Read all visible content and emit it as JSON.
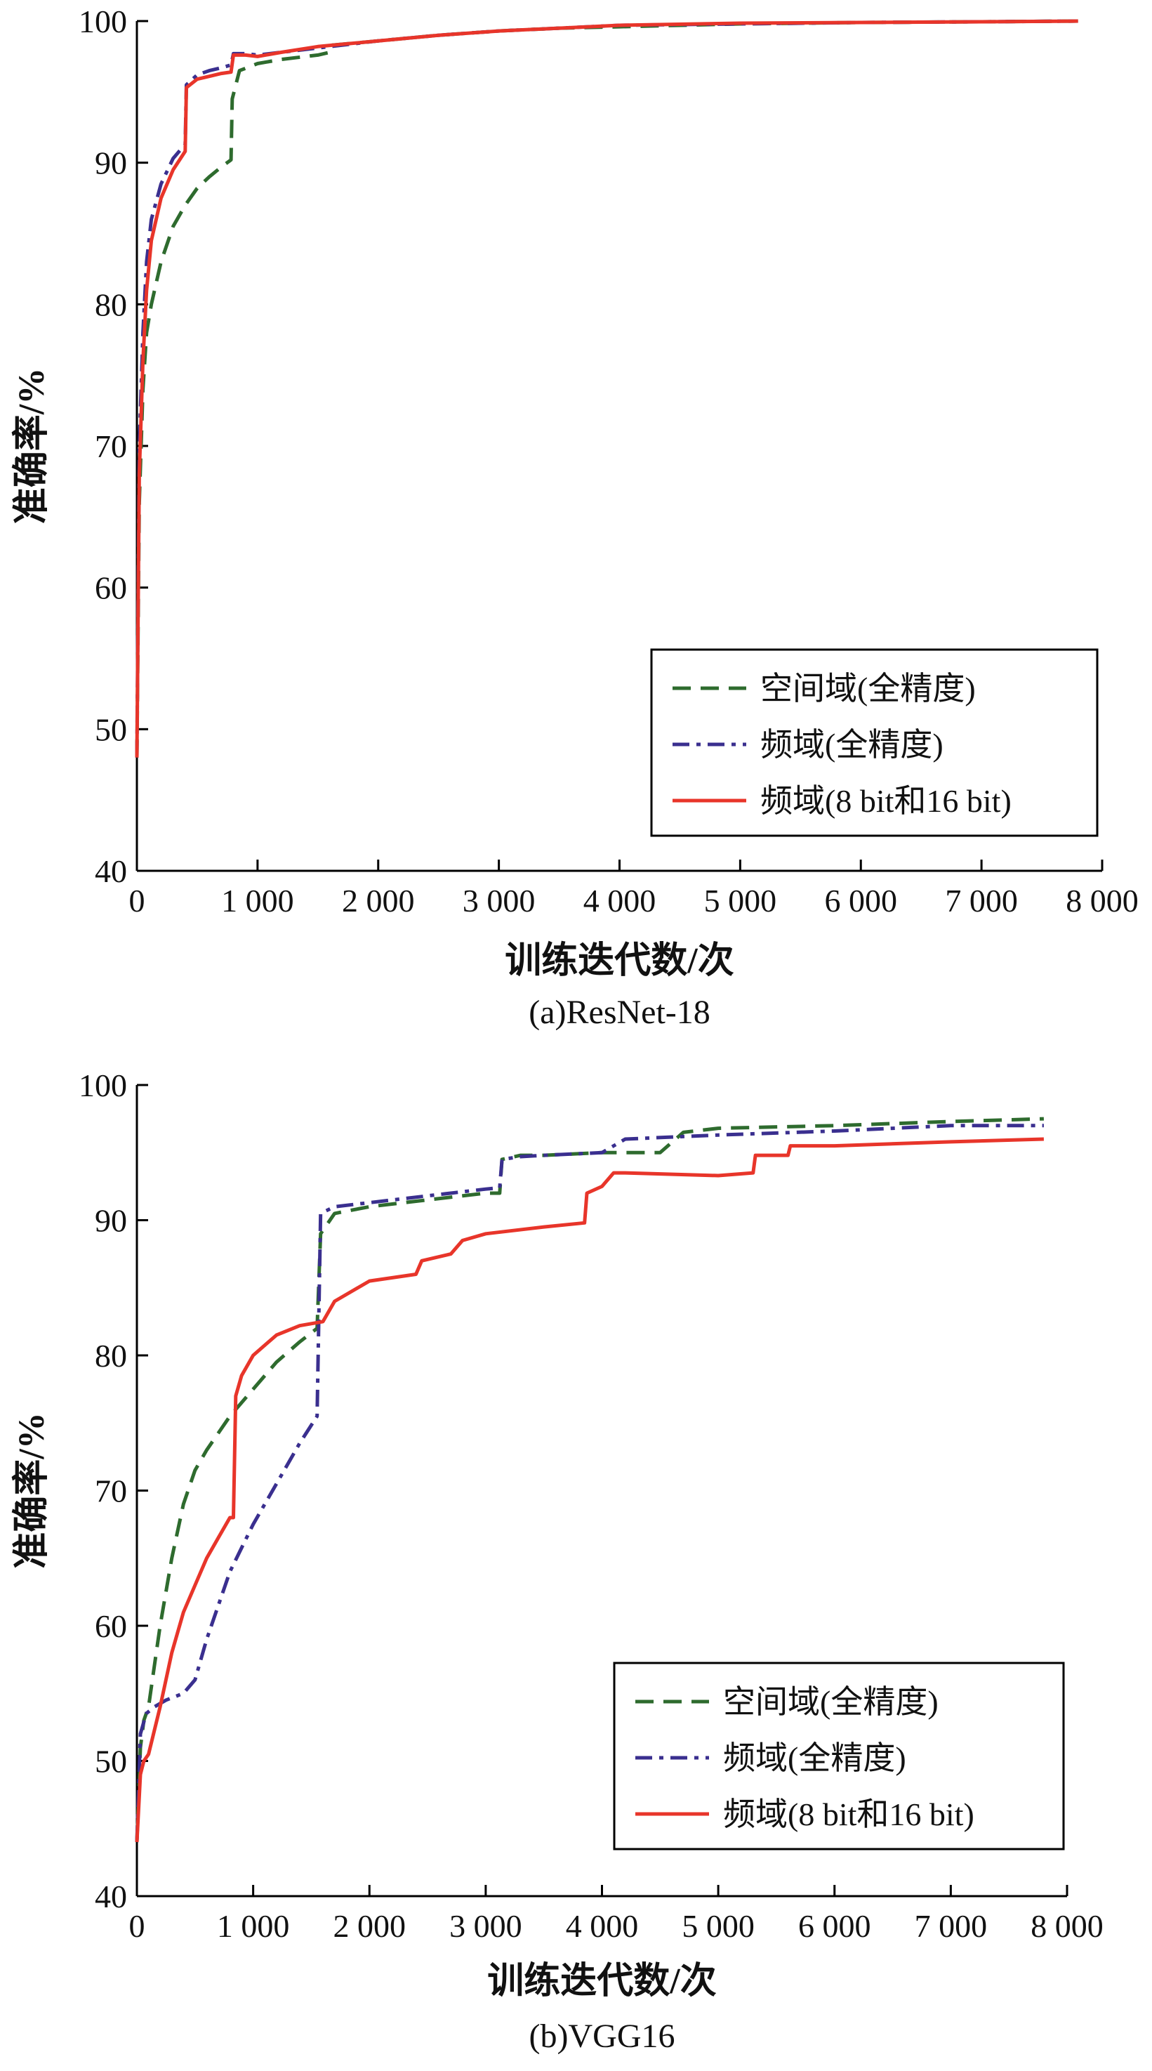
{
  "chart_data": [
    {
      "type": "line",
      "caption": "(a)ResNet-18",
      "xlabel": "训练迭代数/次",
      "ylabel": "准确率/%",
      "xlim": [
        0,
        8000
      ],
      "ylim": [
        40,
        100
      ],
      "xticks": [
        0,
        1000,
        2000,
        3000,
        4000,
        5000,
        6000,
        7000,
        8000
      ],
      "xtick_labels": [
        "0",
        "1 000",
        "2 000",
        "3 000",
        "4 000",
        "5 000",
        "6 000",
        "7 000",
        "8 000"
      ],
      "yticks": [
        40,
        50,
        60,
        70,
        80,
        90,
        100
      ],
      "ytick_labels": [
        "40",
        "50",
        "60",
        "70",
        "80",
        "90",
        "100"
      ],
      "grid": false,
      "legend_position": "lower-right",
      "series": [
        {
          "name": "空间域(全精度)",
          "color": "#2e6b2e",
          "style": "dashed",
          "x": [
            0,
            20,
            50,
            80,
            120,
            200,
            300,
            400,
            500,
            600,
            700,
            780,
            790,
            850,
            1000,
            1200,
            1500,
            1600,
            1620,
            2000,
            2500,
            3000,
            3500,
            4000,
            5000,
            6000,
            7000,
            7800
          ],
          "y": [
            48,
            66,
            74,
            78,
            80,
            83,
            85.5,
            87,
            88.2,
            89,
            89.7,
            90.2,
            94.5,
            96.5,
            97,
            97.3,
            97.6,
            97.8,
            98.3,
            98.6,
            99,
            99.3,
            99.5,
            99.6,
            99.8,
            99.9,
            99.95,
            100
          ]
        },
        {
          "name": "频域(全精度)",
          "color": "#3a2f8f",
          "style": "dashdot",
          "x": [
            0,
            20,
            50,
            80,
            120,
            200,
            300,
            400,
            410,
            500,
            600,
            700,
            780,
            800,
            900,
            1000,
            1200,
            1500,
            2000,
            2500,
            3000,
            3500,
            4000,
            5000,
            6000,
            7000,
            7800
          ],
          "y": [
            48,
            70,
            78,
            83,
            86,
            88.5,
            90.3,
            91.3,
            95.5,
            96.2,
            96.5,
            96.7,
            96.9,
            97.7,
            97.7,
            97.6,
            97.8,
            98.1,
            98.6,
            99,
            99.3,
            99.5,
            99.7,
            99.8,
            99.9,
            99.95,
            100
          ]
        },
        {
          "name": "频域(8 bit和16 bit)",
          "color": "#e8352a",
          "style": "solid",
          "x": [
            0,
            20,
            50,
            80,
            120,
            200,
            300,
            400,
            410,
            500,
            600,
            700,
            780,
            800,
            900,
            1000,
            1200,
            1500,
            2000,
            2500,
            3000,
            3500,
            4000,
            5000,
            6000,
            7000,
            7800
          ],
          "y": [
            48,
            68,
            76,
            81,
            84.5,
            87.5,
            89.5,
            90.8,
            95.3,
            95.9,
            96.1,
            96.3,
            96.4,
            97.6,
            97.6,
            97.5,
            97.8,
            98.2,
            98.6,
            99,
            99.3,
            99.5,
            99.7,
            99.85,
            99.9,
            99.95,
            100
          ]
        }
      ]
    },
    {
      "type": "line",
      "caption": "(b)VGG16",
      "xlabel": "训练迭代数/次",
      "ylabel": "准确率/%",
      "xlim": [
        0,
        8000
      ],
      "ylim": [
        40,
        100
      ],
      "xticks": [
        0,
        1000,
        2000,
        3000,
        4000,
        5000,
        6000,
        7000,
        8000
      ],
      "xtick_labels": [
        "0",
        "1 000",
        "2 000",
        "3 000",
        "4 000",
        "5 000",
        "6 000",
        "7 000",
        "8 000"
      ],
      "yticks": [
        40,
        50,
        60,
        70,
        80,
        90,
        100
      ],
      "ytick_labels": [
        "40",
        "50",
        "60",
        "70",
        "80",
        "90",
        "100"
      ],
      "grid": false,
      "legend_position": "lower-right",
      "series": [
        {
          "name": "空间域(全精度)",
          "color": "#2e6b2e",
          "style": "dashed",
          "x": [
            0,
            30,
            60,
            100,
            150,
            200,
            300,
            400,
            500,
            600,
            800,
            1000,
            1200,
            1400,
            1550,
            1580,
            1700,
            2000,
            2500,
            3000,
            3120,
            3140,
            3300,
            3500,
            4000,
            4500,
            4700,
            5000,
            6000,
            7000,
            7800
          ],
          "y": [
            44,
            51,
            53,
            54,
            57,
            60,
            65,
            69,
            71.5,
            73,
            75.5,
            77.5,
            79.5,
            81,
            82,
            89,
            90.5,
            91,
            91.5,
            92,
            92,
            94.5,
            94.8,
            94.8,
            95,
            95,
            96.5,
            96.8,
            97,
            97.3,
            97.5
          ]
        },
        {
          "name": "频域(全精度)",
          "color": "#3a2f8f",
          "style": "dashdot",
          "x": [
            0,
            30,
            80,
            150,
            250,
            400,
            500,
            600,
            800,
            1000,
            1200,
            1400,
            1550,
            1580,
            1700,
            2000,
            2500,
            3000,
            3120,
            3140,
            3300,
            3500,
            4000,
            4200,
            5000,
            6000,
            7000,
            7800
          ],
          "y": [
            44,
            52,
            53.5,
            54,
            54.5,
            55,
            56,
            59,
            64,
            67.5,
            70.5,
            73.5,
            75.5,
            90.5,
            91,
            91.3,
            91.8,
            92.3,
            92.4,
            94.5,
            94.7,
            94.8,
            95,
            96,
            96.3,
            96.6,
            97,
            97
          ]
        },
        {
          "name": "频域(8 bit和16 bit)",
          "color": "#e8352a",
          "style": "solid",
          "x": [
            0,
            30,
            60,
            100,
            200,
            300,
            400,
            500,
            600,
            700,
            800,
            830,
            850,
            900,
            1000,
            1200,
            1400,
            1600,
            1700,
            2000,
            2400,
            2450,
            2700,
            2800,
            3000,
            3500,
            3850,
            3870,
            4000,
            4100,
            4200,
            5000,
            5300,
            5320,
            5600,
            5620,
            6000,
            7000,
            7800
          ],
          "y": [
            44,
            49,
            50,
            50.5,
            54,
            58,
            61,
            63,
            65,
            66.5,
            68,
            68,
            77,
            78.5,
            80,
            81.5,
            82.2,
            82.5,
            84,
            85.5,
            86,
            87,
            87.5,
            88.5,
            89,
            89.5,
            89.8,
            92,
            92.5,
            93.5,
            93.5,
            93.3,
            93.5,
            94.8,
            94.8,
            95.5,
            95.5,
            95.8,
            96
          ]
        }
      ]
    }
  ]
}
